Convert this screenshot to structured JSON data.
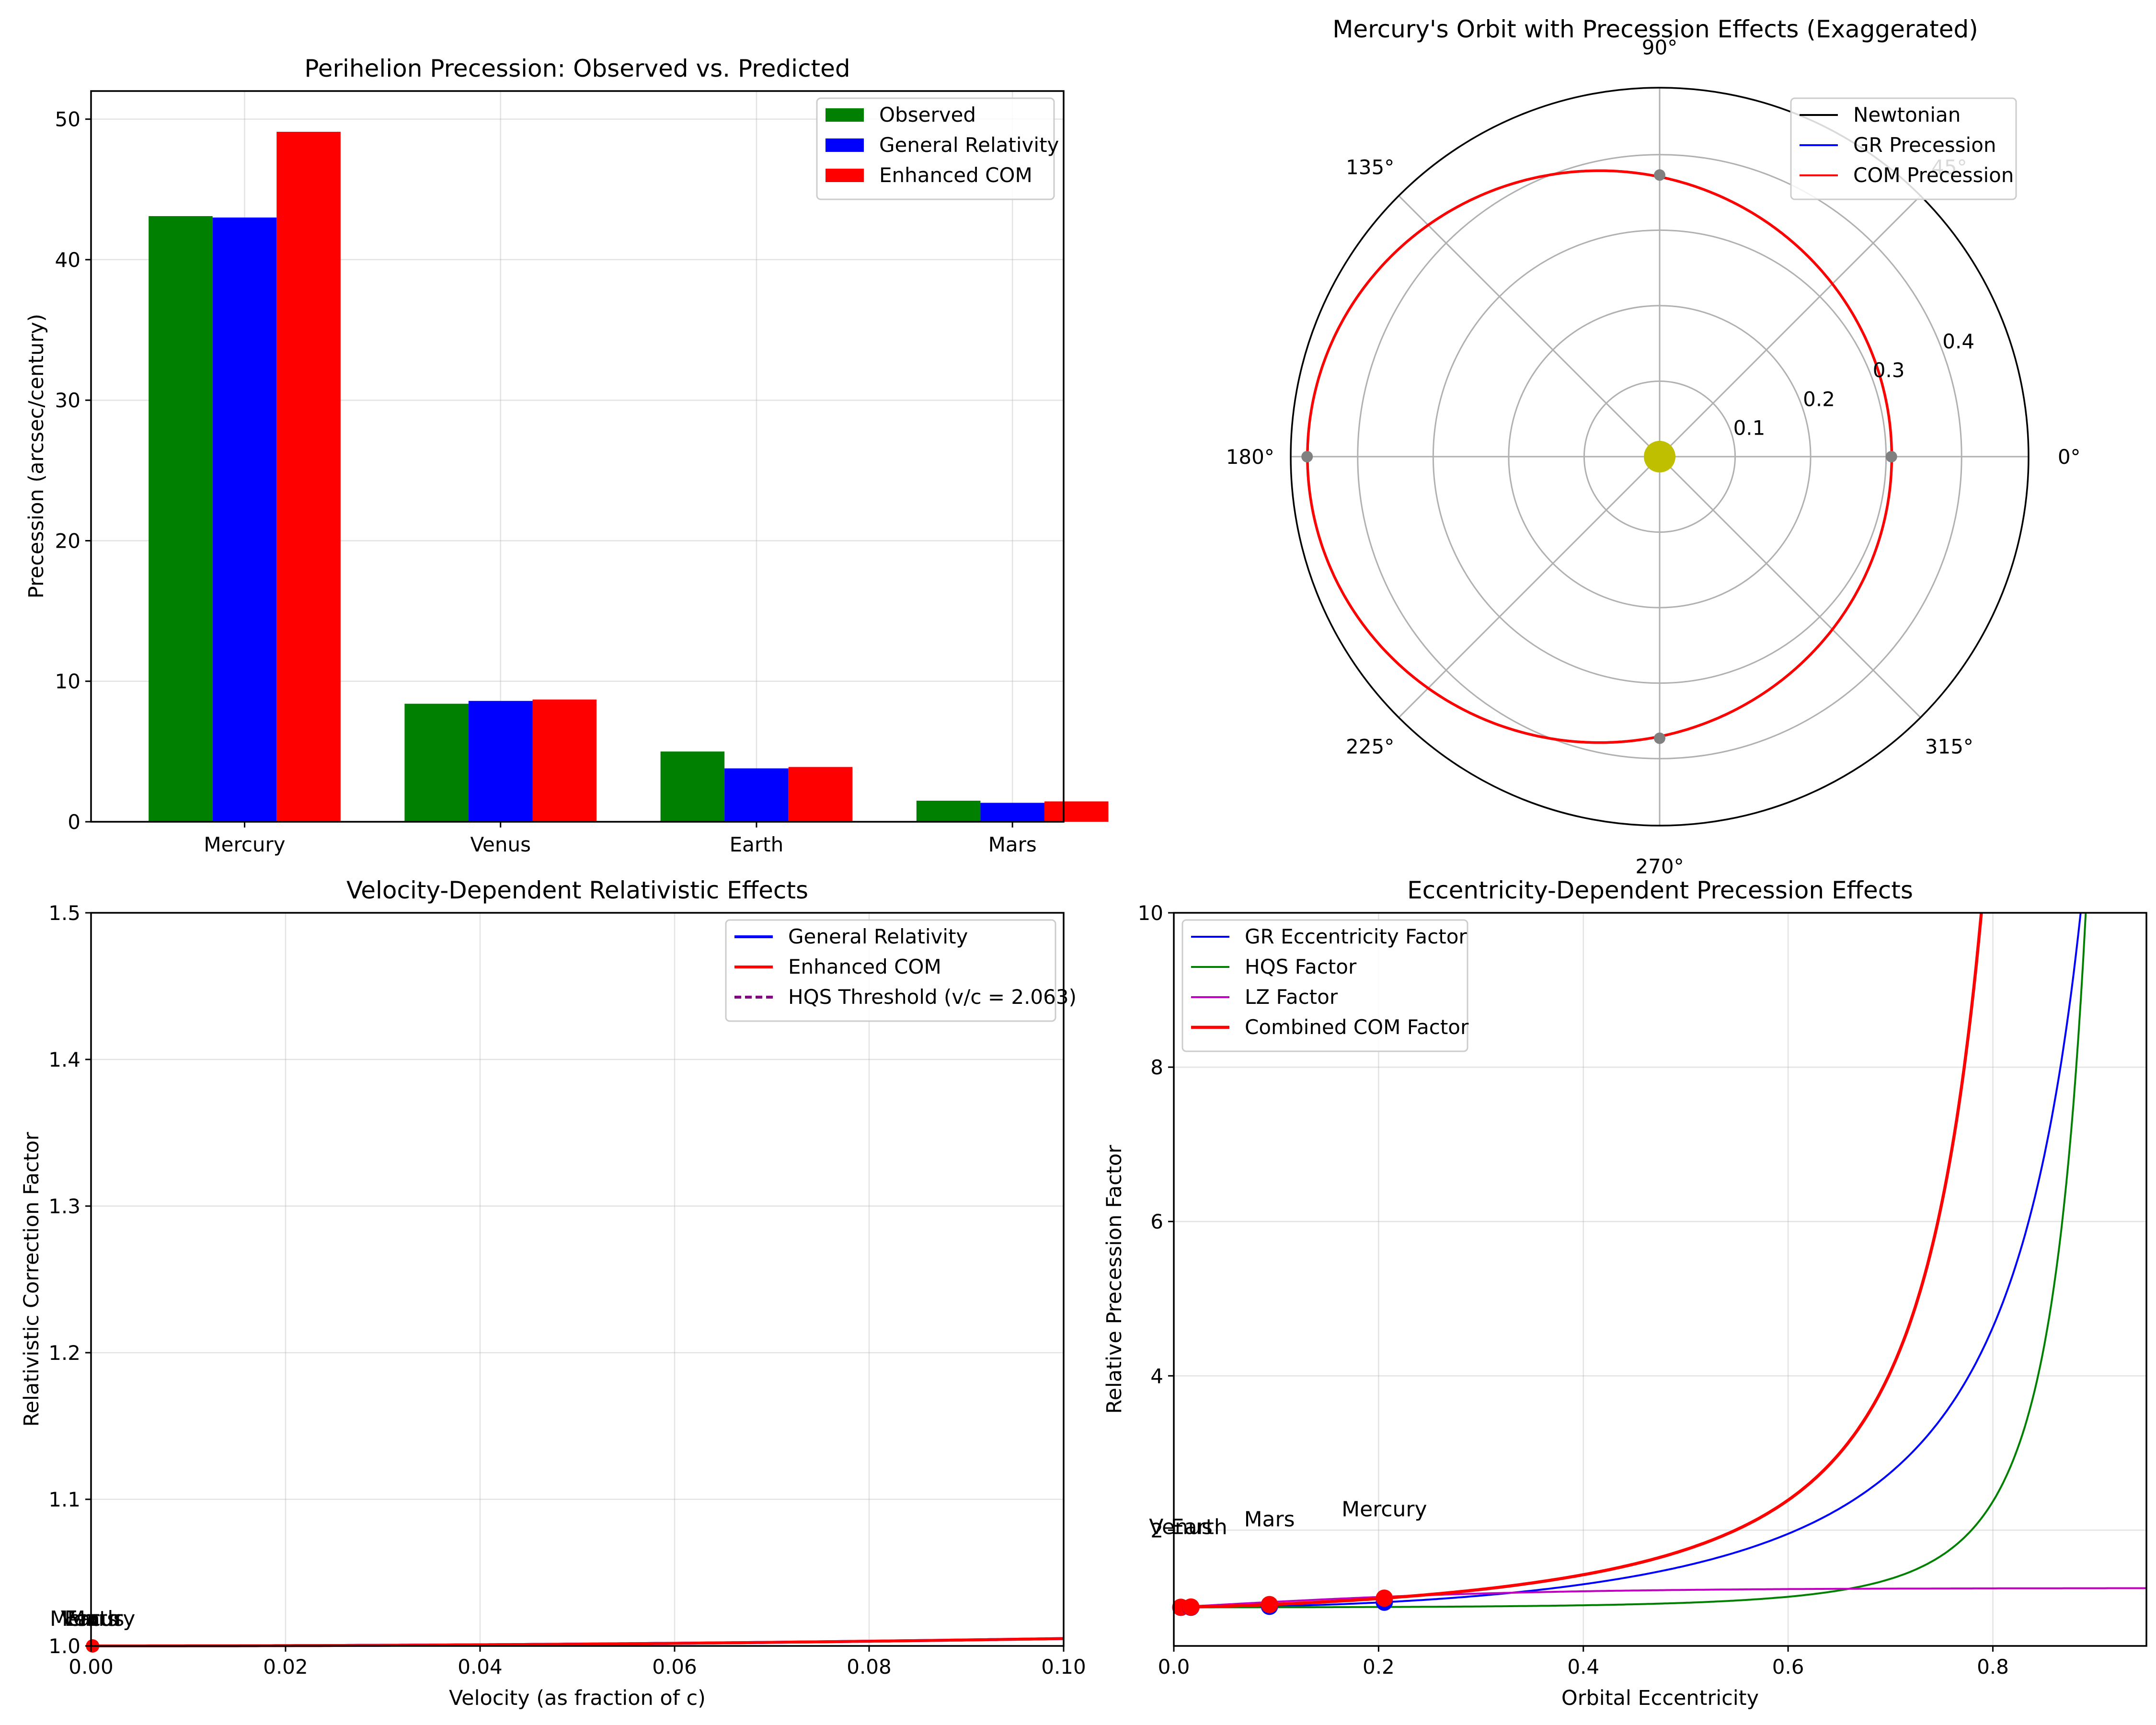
{
  "chart_data": [
    {
      "id": "bar",
      "type": "bar",
      "title": "Perihelion Precession: Observed vs. Predicted",
      "xlabel": "",
      "ylabel": "Precession (arcsec/century)",
      "categories": [
        "Mercury",
        "Venus",
        "Earth",
        "Mars"
      ],
      "series": [
        {
          "name": "Observed",
          "color": "#008000",
          "values": [
            43.1,
            8.4,
            5.0,
            1.5
          ]
        },
        {
          "name": "General Relativity",
          "color": "#0000ff",
          "values": [
            43.0,
            8.6,
            3.8,
            1.35
          ]
        },
        {
          "name": "Enhanced COM",
          "color": "#ff0000",
          "values": [
            49.1,
            8.7,
            3.9,
            1.45
          ]
        }
      ],
      "ylim": [
        0,
        52
      ],
      "yticks": [
        0,
        10,
        20,
        30,
        40,
        50
      ],
      "grid": true,
      "legend": "top-right"
    },
    {
      "id": "polar",
      "type": "line",
      "title": "Mercury's Orbit with Precession Effects (Exaggerated)",
      "angle_ticks": [
        "0°",
        "45°",
        "90°",
        "135°",
        "180°",
        "225°",
        "270°",
        "315°"
      ],
      "radial_ticks": [
        "0.1",
        "0.2",
        "0.3",
        "0.4"
      ],
      "rmax": 0.4887,
      "orbit": {
        "a": 0.387,
        "e": 0.2056
      },
      "series": [
        {
          "name": "Newtonian",
          "color": "#000000",
          "width": 1.5
        },
        {
          "name": "GR Precession",
          "color": "#0000ff",
          "width": 2
        },
        {
          "name": "COM Precession",
          "color": "#ff0000",
          "width": 2
        }
      ],
      "points": {
        "color": "#808080",
        "r": [
          0.307,
          0.373,
          0.467,
          0.373
        ]
      },
      "sun_color": "#bfbf00",
      "legend": "top-right"
    },
    {
      "id": "velocity",
      "type": "line",
      "title": "Velocity-Dependent Relativistic Effects",
      "xlabel": "Velocity (as fraction of c)",
      "ylabel": "Relativistic Correction Factor",
      "xlim": [
        0,
        0.1
      ],
      "ylim": [
        1.0,
        1.5
      ],
      "xticks": [
        "0.00",
        "0.02",
        "0.04",
        "0.06",
        "0.08",
        "0.10"
      ],
      "yticks": [
        "1.0",
        "1.1",
        "1.2",
        "1.3",
        "1.4",
        "1.5"
      ],
      "series": [
        {
          "name": "General Relativity",
          "color": "#0000ff"
        },
        {
          "name": "Enhanced COM",
          "color": "#ff0000"
        },
        {
          "name": "HQS Threshold (v/c = 2.063)",
          "color": "#800080",
          "dashed": true
        }
      ],
      "planet_labels": [
        "Mercury",
        "Venus",
        "Earth",
        "Mars"
      ],
      "grid": true,
      "legend": "top-right"
    },
    {
      "id": "ecc",
      "type": "line",
      "title": "Eccentricity-Dependent Precession Effects",
      "xlabel": "Orbital Eccentricity",
      "ylabel": "Relative Precession Factor",
      "xlim": [
        0,
        0.95
      ],
      "ylim": [
        0.5,
        10
      ],
      "xticks": [
        "0.0",
        "0.2",
        "0.4",
        "0.6",
        "0.8"
      ],
      "yticks": [
        "2",
        "4",
        "6",
        "8",
        "10"
      ],
      "series": [
        {
          "name": "GR Eccentricity Factor",
          "color": "#0000ff"
        },
        {
          "name": "HQS Factor",
          "color": "#008000"
        },
        {
          "name": "LZ Factor",
          "color": "#bf00bf"
        },
        {
          "name": "Combined COM Factor",
          "color": "#ff0000"
        }
      ],
      "planets": [
        {
          "name": "Mercury",
          "e": 0.2056
        },
        {
          "name": "Venus",
          "e": 0.0068
        },
        {
          "name": "Earth",
          "e": 0.0167
        },
        {
          "name": "Mars",
          "e": 0.0934
        }
      ],
      "grid": true,
      "legend": "top-left"
    }
  ]
}
